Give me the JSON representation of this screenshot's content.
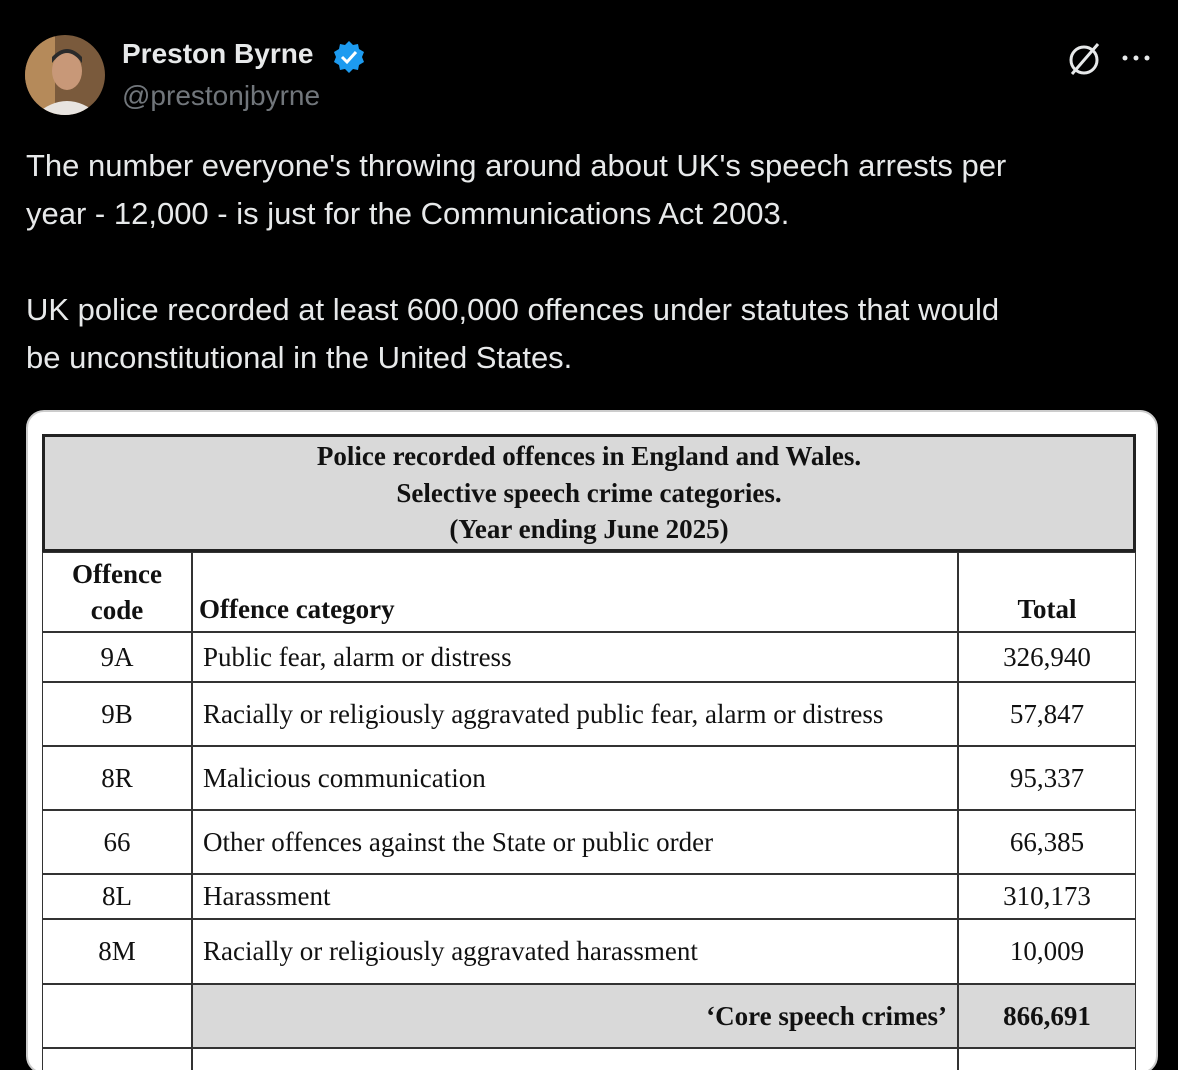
{
  "author": {
    "name": "Preston Byrne",
    "handle": "@prestonjbyrne"
  },
  "tweet": {
    "paragraphs": [
      [
        "The number everyone's throwing around about UK's speech arrests per",
        "year - 12,000 - is just for the Communications Act 2003."
      ],
      [
        "UK police recorded at least 600,000 offences under statutes that would",
        "be unconstitutional in the United States."
      ]
    ]
  },
  "table": {
    "title": [
      "Police recorded offences in England and Wales.",
      "Selective speech crime categories.",
      "(Year ending June 2025)"
    ],
    "headers": [
      "Offence code",
      "Offence category",
      "Total"
    ],
    "rows": [
      [
        "9A",
        "Public fear, alarm or distress",
        "326,940"
      ],
      [
        "9B",
        "Racially or religiously aggravated public fear, alarm or distress",
        "57,847"
      ],
      [
        "8R",
        "Malicious communication",
        "95,337"
      ],
      [
        "66",
        "Other offences against the State or public order",
        "66,385"
      ],
      [
        "8L",
        "Harassment",
        "310,173"
      ],
      [
        "8M",
        "Racially or religiously aggravated harassment",
        "10,009"
      ]
    ],
    "total": {
      "label": "‘Core speech crimes’",
      "value": "866,691"
    }
  }
}
